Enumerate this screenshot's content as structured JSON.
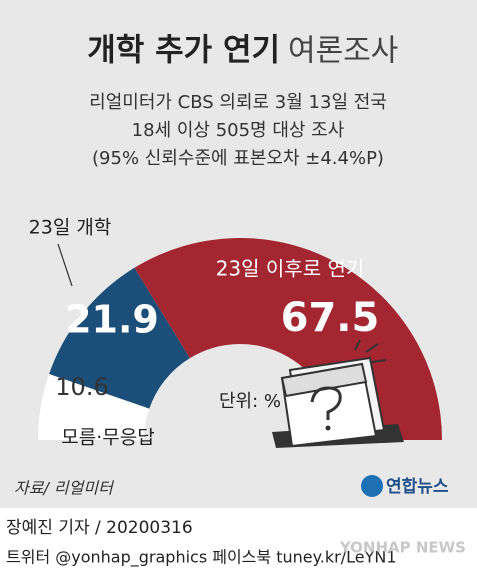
{
  "chart_data": {
    "type": "half-donut",
    "title": "개학 추가 연기",
    "title_suffix": "여론조사",
    "subtitle": [
      "리얼미터가 CBS 의뢰로 3월 13일 전국",
      "18세 이상 505명 대상 조사",
      "(95% 신뢰수준에 표본오차 ±4.4%P)"
    ],
    "categories": [
      "모름·무응답",
      "23일 개학",
      "23일 이후로 연기"
    ],
    "values": [
      10.6,
      21.9,
      67.5
    ],
    "colors": [
      "#ffffff",
      "#1b4f7a",
      "#a32630"
    ],
    "unit": "단위: %",
    "source": "자료/ 리얼미터",
    "logo": "연합뉴스",
    "credit": "장예진 기자 / 20200316",
    "social": "트위터 @yonhap_graphics  페이스북 tuney.kr/LeYN1",
    "watermark": "YONHAP NEWS"
  }
}
